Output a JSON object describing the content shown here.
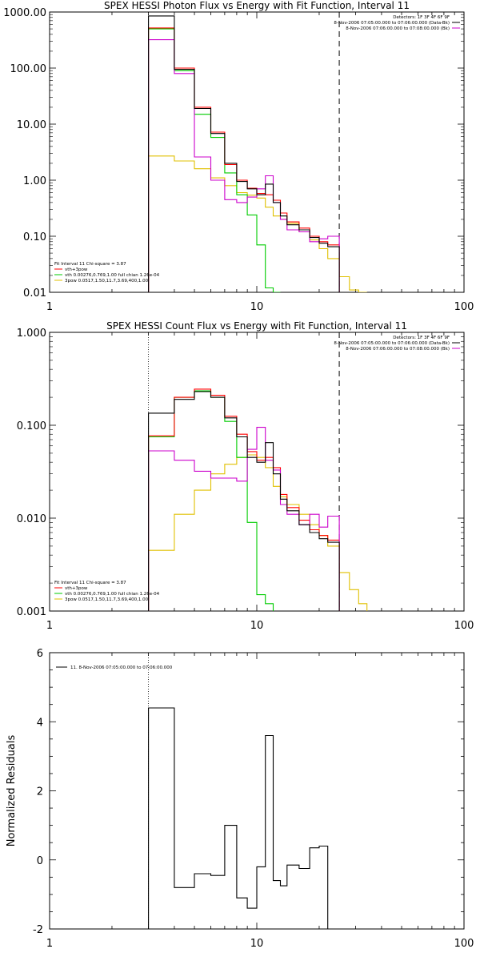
{
  "colors": {
    "total": "#000000",
    "vth_spav": "#ff0000",
    "vth": "#00cc00",
    "spav": "#e0c000",
    "data": "#cc00cc",
    "axis": "#000000"
  },
  "chart_data": [
    {
      "type": "line",
      "title": "SPEX HESSI Photon Flux vs Energy with Fit Function, Interval 11",
      "xlabel": "",
      "ylabel": "",
      "xscale": "log",
      "yscale": "log",
      "xlim": [
        1,
        100
      ],
      "ylim": [
        0.01,
        1000
      ],
      "x_ticks": [
        "1",
        "10",
        "100"
      ],
      "y_ticks": [
        "0.01",
        "0.10",
        "1.00",
        "10.00",
        "100.00",
        "1000.00"
      ],
      "info": {
        "detectors": "Detectors: 1F 3F 4F 6F 9F",
        "line1": "8-Nov-2006 07:05:00.000 to 07:06:00.000 (Data-Bk)",
        "line2": "8-Nov-2006 07:06:00.000 to 07:08:00.000 (Bk)"
      },
      "legend": {
        "header": "Fit Interval 11    Chi-square = 3.87",
        "entries": [
          {
            "label": "vth+3pow",
            "color": "#ff0000"
          },
          {
            "label": "vth 0.00276,0.769,1.00  full chian 1.26e-04",
            "color": "#00cc00"
          },
          {
            "label": "3pow 0.0517,1.50,11.7,3.69,400,1.00",
            "color": "#e0c000"
          }
        ]
      },
      "edges": [
        3,
        4,
        5,
        6,
        7,
        8,
        9,
        10,
        11,
        12,
        13,
        14,
        16,
        18,
        20,
        22,
        25,
        28,
        31,
        34
      ],
      "series": [
        {
          "name": "Total",
          "color": "#000000",
          "values": [
            850,
            95,
            19,
            6.8,
            2.0,
            0.95,
            0.7,
            0.55,
            0.85,
            0.4,
            0.23,
            0.16,
            0.13,
            0.095,
            0.075,
            0.065,
            null,
            null,
            null
          ]
        },
        {
          "name": "vth+3pow",
          "color": "#ff0000",
          "values": [
            520,
            100,
            20,
            7.2,
            1.9,
            1.0,
            0.72,
            0.58,
            0.55,
            0.44,
            0.26,
            0.18,
            0.14,
            0.1,
            0.08,
            0.07,
            null,
            null,
            null
          ]
        },
        {
          "name": "vth",
          "color": "#00cc00",
          "values": [
            500,
            90,
            15,
            5.8,
            1.35,
            0.55,
            0.24,
            0.07,
            0.012,
            0.009,
            null,
            null,
            null,
            null,
            null,
            null,
            null,
            null,
            null
          ]
        },
        {
          "name": "3pow",
          "color": "#e0c000",
          "values": [
            2.7,
            2.2,
            1.6,
            1.1,
            0.8,
            0.6,
            0.54,
            0.48,
            0.33,
            0.23,
            0.2,
            0.17,
            0.12,
            0.086,
            0.06,
            0.04,
            0.019,
            0.011,
            0.008
          ]
        },
        {
          "name": "Data-Bk",
          "color": "#cc00cc",
          "values": [
            320,
            80,
            2.6,
            1.0,
            0.45,
            0.4,
            0.5,
            0.7,
            1.2,
            0.4,
            0.2,
            0.13,
            0.12,
            0.08,
            0.09,
            0.1,
            null,
            null,
            null
          ]
        }
      ]
    },
    {
      "type": "line",
      "title": "SPEX HESSI Count Flux vs Energy with Fit Function, Interval 11",
      "xlabel": "",
      "ylabel": "",
      "xscale": "log",
      "yscale": "log",
      "xlim": [
        1,
        100
      ],
      "ylim": [
        0.001,
        1
      ],
      "x_ticks": [
        "1",
        "10",
        "100"
      ],
      "y_ticks": [
        "0.001",
        "0.010",
        "0.100",
        "1.000"
      ],
      "info": {
        "detectors": "Detectors: 1F 3F 4F 6F 9F",
        "line1": "8-Nov-2006 07:05:00.000 to 07:06:00.000 (Data-Bk)",
        "line2": "8-Nov-2006 07:06:00.000 to 07:08:00.000 (Bk)"
      },
      "legend": {
        "header": "Fit Interval 11    Chi-square = 3.87",
        "entries": [
          {
            "label": "vth+3pow",
            "color": "#ff0000"
          },
          {
            "label": "vth 0.00276,0.769,1.00  full chian 1.26e-04",
            "color": "#00cc00"
          },
          {
            "label": "3pow 0.0517,1.50,11.7,3.69,400,1.00",
            "color": "#e0c000"
          }
        ]
      },
      "edges": [
        3,
        4,
        5,
        6,
        7,
        8,
        9,
        10,
        11,
        12,
        13,
        14,
        16,
        18,
        20,
        22,
        25,
        28,
        31,
        34
      ],
      "series": [
        {
          "name": "Total",
          "color": "#000000",
          "values": [
            0.135,
            0.19,
            0.23,
            0.2,
            0.12,
            0.075,
            0.045,
            0.04,
            0.065,
            0.03,
            0.016,
            0.012,
            0.0085,
            0.007,
            0.006,
            0.0055,
            null,
            null,
            null
          ]
        },
        {
          "name": "vth+3pow",
          "color": "#ff0000",
          "values": [
            0.077,
            0.2,
            0.245,
            0.21,
            0.125,
            0.08,
            0.052,
            0.042,
            0.045,
            0.035,
            0.018,
            0.013,
            0.0095,
            0.0075,
            0.0065,
            0.0058,
            null,
            null,
            null
          ]
        },
        {
          "name": "vth",
          "color": "#00cc00",
          "values": [
            0.075,
            0.2,
            0.235,
            0.2,
            0.11,
            0.045,
            0.009,
            0.0015,
            0.0012,
            null,
            null,
            null,
            null,
            null,
            null,
            null,
            null,
            null,
            null
          ]
        },
        {
          "name": "3pow",
          "color": "#e0c000",
          "values": [
            0.0045,
            0.011,
            0.02,
            0.03,
            0.038,
            0.045,
            0.048,
            0.045,
            0.035,
            0.022,
            0.017,
            0.014,
            0.011,
            0.0085,
            0.0065,
            0.005,
            0.0026,
            0.0017,
            0.0012
          ]
        },
        {
          "name": "Data-Bk",
          "color": "#cc00cc",
          "values": [
            0.053,
            0.042,
            0.032,
            0.027,
            0.027,
            0.025,
            0.055,
            0.095,
            0.042,
            0.033,
            0.014,
            0.011,
            0.0085,
            0.011,
            0.008,
            0.0105,
            null,
            null,
            null
          ]
        }
      ]
    },
    {
      "type": "line",
      "title": "",
      "xlabel": "",
      "ylabel": "Normalized Residuals",
      "xscale": "log",
      "yscale": "linear",
      "xlim": [
        1,
        100
      ],
      "ylim": [
        -2,
        6
      ],
      "x_ticks": [
        "1",
        "10",
        "100"
      ],
      "y_ticks": [
        "-2",
        "0",
        "2",
        "4",
        "6"
      ],
      "legend_text": "11.  8-Nov-2006 07:05:00.000 to 07:06:00.000",
      "edges": [
        3,
        4,
        5,
        6,
        7,
        8,
        9,
        10,
        11,
        12,
        13,
        14,
        16,
        18,
        20,
        22,
        25
      ],
      "series": [
        {
          "name": "Residuals",
          "color": "#000000",
          "values": [
            4.4,
            -0.8,
            -0.4,
            -0.45,
            1.0,
            -1.1,
            -1.4,
            -0.2,
            3.6,
            -0.6,
            -0.75,
            -0.15,
            -0.25,
            0.35,
            0.4
          ]
        }
      ]
    }
  ]
}
